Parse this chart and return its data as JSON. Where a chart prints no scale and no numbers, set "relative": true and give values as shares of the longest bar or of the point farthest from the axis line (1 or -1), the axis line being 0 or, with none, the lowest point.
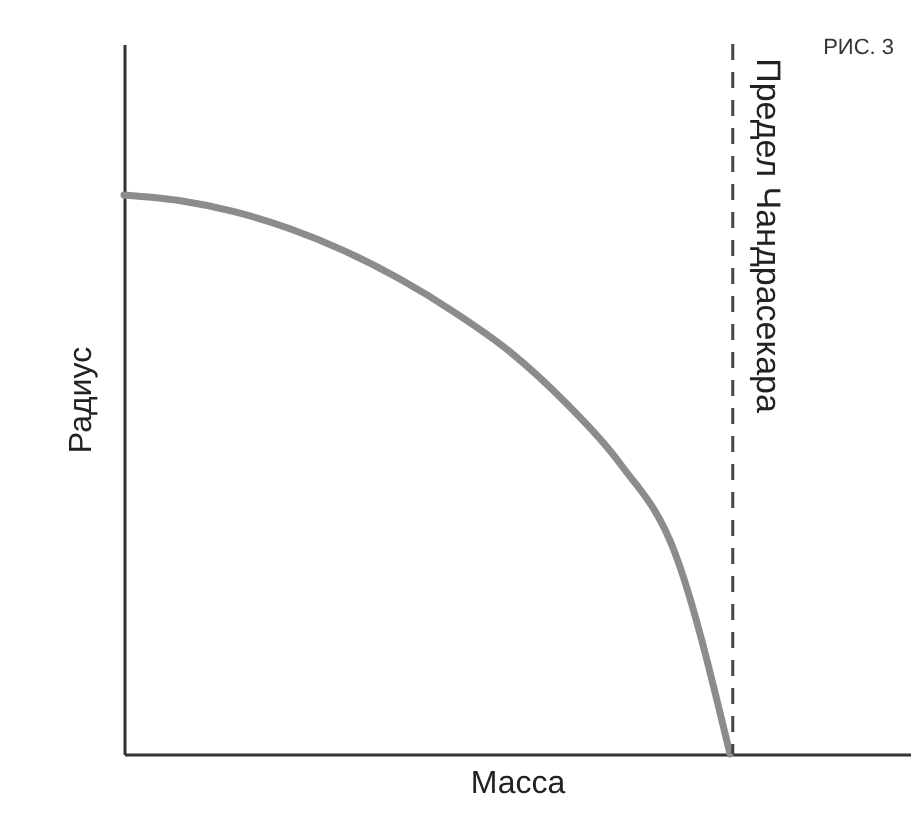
{
  "chart_data": {
    "type": "line",
    "relative": true,
    "xlabel": "Масса",
    "ylabel": "Радиус",
    "tick_labels": false,
    "grid": false,
    "marker": "none",
    "line_style": "solid",
    "categories": [
      null,
      null,
      null,
      null,
      null,
      null,
      null,
      null,
      null,
      null,
      null,
      null
    ],
    "series": [
      {
        "color": "#8c8c8c",
        "values": [
          1.0,
          0.99,
          0.97,
          0.94,
          0.9,
          0.85,
          0.79,
          0.72,
          0.63,
          0.52,
          0.36,
          0
        ]
      }
    ],
    "ref_lines": [
      {
        "axis": "x",
        "value": null,
        "label": "Предел Чандрасекара",
        "line_style": "dashed",
        "color": "#444444"
      }
    ],
    "annotations": [
      "РИС. 3"
    ]
  }
}
